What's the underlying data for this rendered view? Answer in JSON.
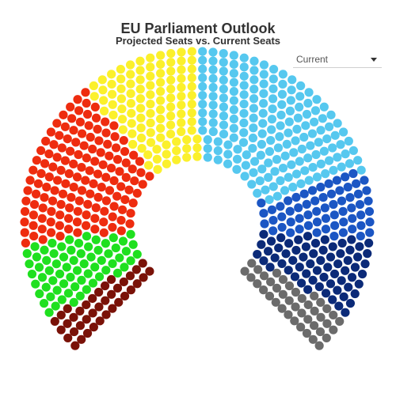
{
  "title": "EU Parliament Outlook",
  "subtitle": "Projected Seats vs. Current Seats",
  "dropdown": {
    "selected": "Current"
  },
  "chart_data": {
    "type": "parliament",
    "title": "EU Parliament Outlook",
    "subtitle": "Projected Seats vs. Current Seats",
    "view": "Current",
    "total_seats": 705,
    "groups": [
      {
        "color": "#7a1208",
        "seats": 38
      },
      {
        "color": "#1fe01f",
        "seats": 67
      },
      {
        "color": "#ee2c0f",
        "seats": 145
      },
      {
        "color": "#fbf02c",
        "seats": 104
      },
      {
        "color": "#56c8ef",
        "seats": 182
      },
      {
        "color": "#1b56c4",
        "seats": 62
      },
      {
        "color": "#0b2a78",
        "seats": 66
      },
      {
        "color": "#6b6b6b",
        "seats": 41
      }
    ]
  }
}
